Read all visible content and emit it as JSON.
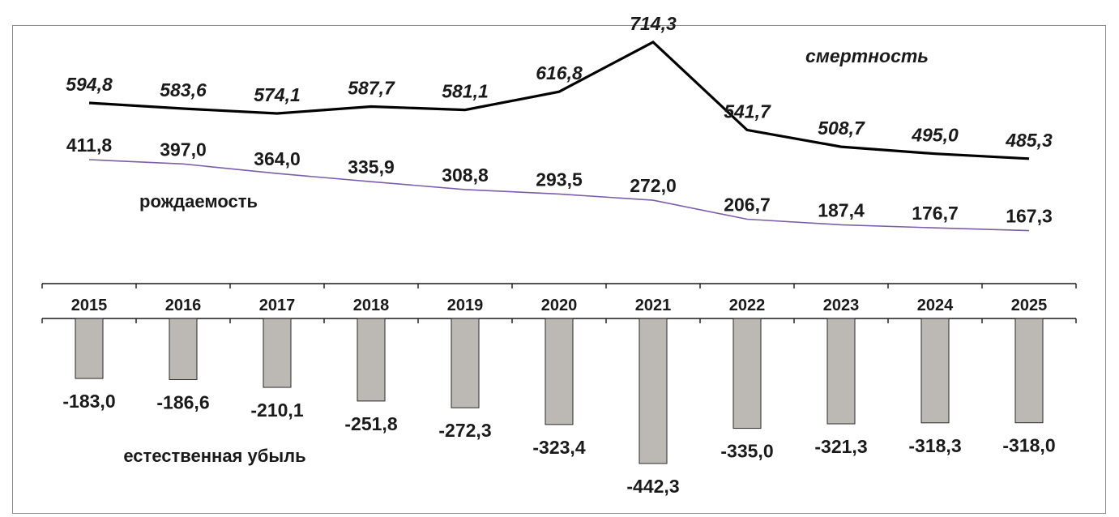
{
  "chart_data": {
    "type": "line+bar",
    "categories": [
      "2015",
      "2016",
      "2017",
      "2018",
      "2019",
      "2020",
      "2021",
      "2022",
      "2023",
      "2024",
      "2025"
    ],
    "series": [
      {
        "name": "смертность",
        "kind": "line",
        "values": [
          594.8,
          583.6,
          574.1,
          587.7,
          581.1,
          616.8,
          714.3,
          541.7,
          508.7,
          495.0,
          485.3
        ],
        "labels": [
          "594,8",
          "583,6",
          "574,1",
          "587,7",
          "581,1",
          "616,8",
          "714,3",
          "541,7",
          "508,7",
          "495,0",
          "485,3"
        ],
        "color": "#000000"
      },
      {
        "name": "рождаемость",
        "kind": "line",
        "values": [
          411.8,
          397.0,
          364.0,
          335.9,
          308.8,
          293.5,
          272.0,
          206.7,
          187.4,
          176.7,
          167.3
        ],
        "labels": [
          "411,8",
          "397,0",
          "364,0",
          "335,9",
          "308,8",
          "293,5",
          "272,0",
          "206,7",
          "187,4",
          "176,7",
          "167,3"
        ],
        "color": "#7b5ea7"
      },
      {
        "name": "естественная убыль",
        "kind": "bar",
        "values": [
          -183.0,
          -186.6,
          -210.1,
          -251.8,
          -272.3,
          -323.4,
          -442.3,
          -335.0,
          -321.3,
          -318.3,
          -318.0
        ],
        "labels": [
          "-183,0",
          "-186,6",
          "-210,1",
          "-251,8",
          "-272,3",
          "-323,4",
          "-442,3",
          "-335,0",
          "-321,3",
          "-318,3",
          "-318,0"
        ],
        "color": "#bcb8b4"
      }
    ],
    "grid": false,
    "legend": "none"
  }
}
